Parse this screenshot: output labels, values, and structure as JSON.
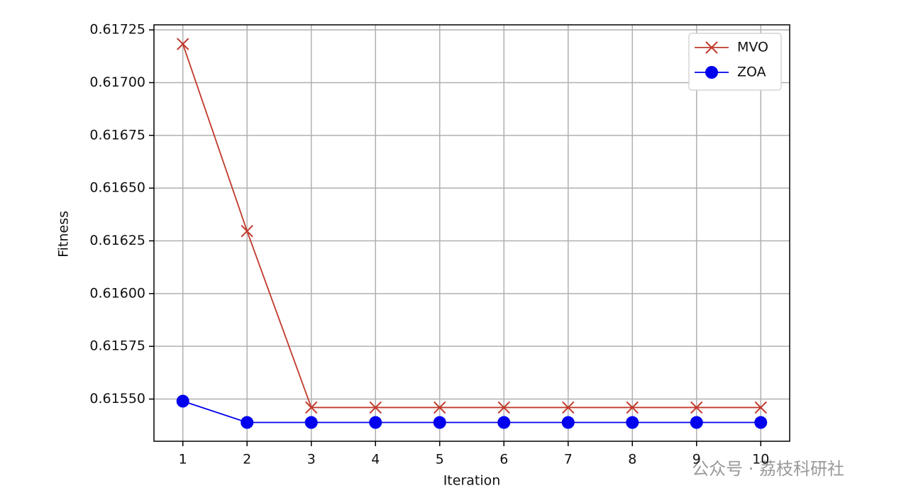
{
  "chart_data": {
    "type": "line",
    "xlabel": "Iteration",
    "ylabel": "Fitness",
    "x": [
      1,
      2,
      3,
      4,
      5,
      6,
      7,
      8,
      9,
      10
    ],
    "series": [
      {
        "name": "MVO",
        "color": "#c0392b",
        "marker": "x",
        "values": [
          0.617183,
          0.616296,
          0.61546,
          0.61546,
          0.61546,
          0.61546,
          0.61546,
          0.61546,
          0.61546,
          0.61546
        ]
      },
      {
        "name": "ZOA",
        "color": "#0000ee",
        "marker": "o",
        "values": [
          0.61549,
          0.615389,
          0.615389,
          0.615389,
          0.615389,
          0.615389,
          0.615389,
          0.615389,
          0.615389,
          0.615389
        ]
      }
    ],
    "xlim": [
      0.55,
      10.45
    ],
    "ylim": [
      0.6153,
      0.617274
    ],
    "xticks": [
      1,
      2,
      3,
      4,
      5,
      6,
      7,
      8,
      9,
      10
    ],
    "yticks": [
      {
        "value": 0.6155,
        "label": "0.61550"
      },
      0.61575,
      {
        "value": 0.616,
        "label": "0.61600"
      },
      0.61625,
      {
        "value": 0.6165,
        "label": "0.61650"
      },
      0.61675,
      {
        "value": 0.617,
        "label": "0.61700"
      },
      0.61725
    ],
    "grid": true,
    "legend": "upper right",
    "watermark": "公众号 · 荔枝科研社"
  }
}
